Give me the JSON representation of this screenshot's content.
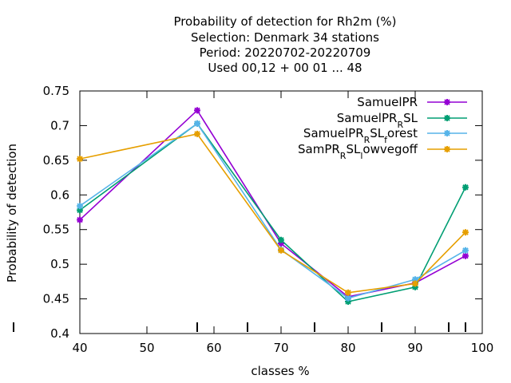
{
  "chart_data": {
    "type": "line",
    "title_lines": [
      "Probability of detection  for Rh2m (%)",
      "Selection: Denmark     34 stations",
      "Period: 20220702-20220709",
      "Used  00,12  + 00 01 ... 48"
    ],
    "xlabel": "classes %",
    "ylabel": "Probability of detection",
    "xlim": [
      40,
      100
    ],
    "ylim": [
      0.4,
      0.75
    ],
    "x_ticks": [
      40,
      50,
      60,
      70,
      80,
      90,
      100
    ],
    "x_tick_labels": [
      "40",
      "50",
      "60",
      "70",
      "80",
      "90",
      "100"
    ],
    "y_ticks": [
      0.4,
      0.45,
      0.5,
      0.55,
      0.6,
      0.65,
      0.7,
      0.75
    ],
    "y_tick_labels": [
      "0.4",
      "0.45",
      "0.5",
      "0.55",
      "0.6",
      "0.65",
      "0.7",
      "0.75"
    ],
    "extra_x_marks": [
      57.5,
      65,
      75,
      85,
      95,
      97.5
    ],
    "grid": false,
    "legend_position": "top-right",
    "series": [
      {
        "legend_parts": [
          [
            "SamuelPR",
            "n"
          ]
        ],
        "color": "#9400d3",
        "x": [
          40,
          57.5,
          70,
          80,
          90,
          97.5
        ],
        "y": [
          0.564,
          0.722,
          0.53,
          0.453,
          0.473,
          0.512
        ]
      },
      {
        "legend_parts": [
          [
            "SamuelPR",
            "n"
          ],
          [
            "R",
            "sub"
          ],
          [
            "SL",
            "n"
          ]
        ],
        "color": "#009e73",
        "x": [
          40,
          57.5,
          70,
          80,
          90,
          97.5
        ],
        "y": [
          0.578,
          0.703,
          0.535,
          0.446,
          0.467,
          0.611
        ]
      },
      {
        "legend_parts": [
          [
            "SamuelPR",
            "n"
          ],
          [
            "R",
            "sub"
          ],
          [
            "SL",
            "n"
          ],
          [
            "f",
            "sub"
          ],
          [
            "orest",
            "n"
          ]
        ],
        "color": "#56b4e9",
        "x": [
          40,
          57.5,
          70,
          80,
          90,
          97.5
        ],
        "y": [
          0.584,
          0.703,
          0.521,
          0.451,
          0.478,
          0.52
        ]
      },
      {
        "legend_parts": [
          [
            "SamPR",
            "n"
          ],
          [
            "R",
            "sub"
          ],
          [
            "SL",
            "n"
          ],
          [
            "l",
            "sub"
          ],
          [
            "owvegoff",
            "n"
          ]
        ],
        "color": "#e69f00",
        "x": [
          40,
          57.5,
          70,
          80,
          90,
          97.5
        ],
        "y": [
          0.652,
          0.688,
          0.52,
          0.459,
          0.472,
          0.546
        ]
      }
    ]
  }
}
